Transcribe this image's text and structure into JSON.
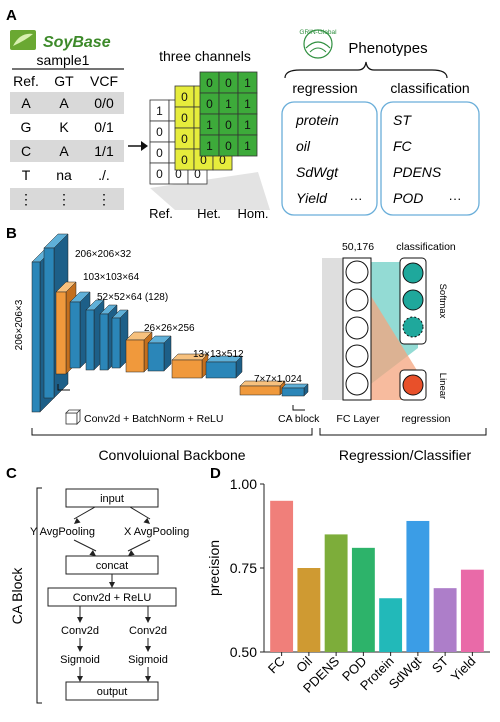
{
  "panel_labels": [
    "A",
    "B",
    "C",
    "D"
  ],
  "panelA": {
    "logo_text": "SoyBase",
    "sample_title": "sample1",
    "table_headers": [
      "Ref.",
      "GT",
      "VCF"
    ],
    "table_rows": [
      [
        "A",
        "A",
        "0/0"
      ],
      [
        "G",
        "K",
        "0/1"
      ],
      [
        "C",
        "A",
        "1/1"
      ],
      [
        "T",
        "na",
        "./."
      ],
      [
        "⋮",
        "⋮",
        "⋮"
      ]
    ],
    "channels_title": "three channels",
    "grid_ref": [
      "1",
      "0",
      "0",
      "0",
      "1",
      "0",
      "0",
      "0",
      "1",
      "0",
      "0",
      "0"
    ],
    "grid_het": [
      "0",
      "1",
      "0",
      "0",
      "1",
      "0",
      "0",
      "0",
      "1",
      "0",
      "0",
      "0"
    ],
    "grid_hom": [
      "0",
      "0",
      "1",
      "0",
      "1",
      "1",
      "1",
      "0",
      "1",
      "1",
      "0",
      "1"
    ],
    "channel_labels": [
      "Ref.",
      "Het.",
      "Hom."
    ],
    "grin_logo_text": "GRIN-Global",
    "phenotypes_title": "Phenotypes",
    "regression_label": "regression",
    "classification_label": "classification",
    "regression_items": [
      "protein",
      "oil",
      "SdWgt",
      "Yield"
    ],
    "classification_items": [
      "ST",
      "FC",
      "PDENS",
      "POD"
    ],
    "ellipsis": "···"
  },
  "panelB": {
    "input_size": "206×206×3",
    "layer_labels": [
      "206×206×32",
      "103×103×64",
      "52×52×64 (128)",
      "26×26×256",
      "13×13×512",
      "7×7×1,024"
    ],
    "legend_conv": "Conv2d + BatchNorm + ReLU",
    "legend_ca": "CA block",
    "fc_count": "50,176",
    "fc_label": "FC Layer",
    "classification_label": "classification",
    "softmax_label": "Softmax",
    "linear_label": "Linear",
    "regression_label": "regression",
    "backbone_label": "Convoluional Backbone",
    "regressor_label": "Regression/Classifier"
  },
  "panelC": {
    "side_label": "CA Block",
    "nodes": {
      "input": "input",
      "y_pool": "Y AvgPooling",
      "x_pool": "X AvgPooling",
      "concat": "concat",
      "conv_relu": "Conv2d + ReLU",
      "conv_left": "Conv2d",
      "conv_right": "Conv2d",
      "sig_left": "Sigmoid",
      "sig_right": "Sigmoid",
      "output": "output"
    }
  },
  "chart_data": {
    "type": "bar",
    "categories": [
      "FC",
      "Oil",
      "PDENS",
      "POD",
      "Protein",
      "SdWgt",
      "ST",
      "Yield"
    ],
    "values": [
      0.95,
      0.75,
      0.85,
      0.81,
      0.66,
      0.89,
      0.69,
      0.745
    ],
    "colors": [
      "#f07f7a",
      "#cf9a32",
      "#7dad3a",
      "#2db36a",
      "#22b9b9",
      "#3b9de6",
      "#ad7ec9",
      "#e96aa8"
    ],
    "ylabel": "precision",
    "ylim": [
      0.5,
      1.0
    ],
    "yticks": [
      "0.50",
      "0.75",
      "1.00"
    ],
    "ytick_values": [
      0.5,
      0.75,
      1.0
    ],
    "grid": false
  }
}
